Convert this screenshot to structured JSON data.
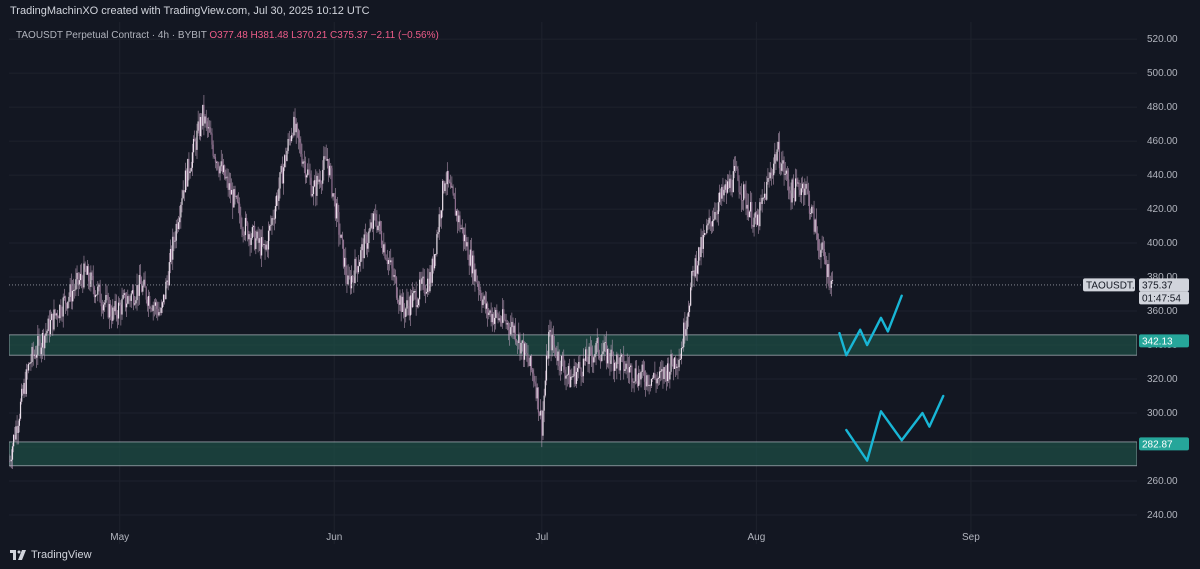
{
  "header": {
    "attribution": "TradingMachinXO created with TradingView.com, Jul 30, 2025 10:12 UTC"
  },
  "legend": {
    "symbol": "TAOUSDT Perpetual Contract · 4h · BYBIT",
    "ohlc": "O377.48  H381.48  L370.21  C375.37  −2.11 (−0.56%)"
  },
  "footer": {
    "brand": "TradingView"
  },
  "price_labels": {
    "symbol_tag": "TAOUSDT.P",
    "last_price": "375.37",
    "countdown": "01:47:54",
    "zone_upper": "342.13",
    "zone_lower": "282.87"
  },
  "colors": {
    "background": "#131722",
    "candle": "#c9a9c6",
    "zone_fill": "#1d4c44",
    "zone_border": "#2e8f7e",
    "zone_label": "#26a69a",
    "drawing": "#18b6d6"
  },
  "chart_data": {
    "type": "candlestick",
    "timeframe": "4h",
    "y_axis": {
      "ticks": [
        240,
        260,
        280,
        300,
        320,
        340,
        360,
        380,
        400,
        420,
        440,
        460,
        480,
        500,
        520
      ],
      "range": [
        230,
        523
      ]
    },
    "x_axis": {
      "range": [
        "2025-04-15",
        "2025-09-25"
      ],
      "ticks": [
        {
          "date": "2025-05-01",
          "label": "May"
        },
        {
          "date": "2025-06-01",
          "label": "Jun"
        },
        {
          "date": "2025-07-01",
          "label": "Jul"
        },
        {
          "date": "2025-08-01",
          "label": "Aug"
        },
        {
          "date": "2025-09-01",
          "label": "Sep"
        }
      ]
    },
    "price_path": [
      {
        "date": "2025-04-15",
        "close": 272
      },
      {
        "date": "2025-04-18",
        "close": 330
      },
      {
        "date": "2025-04-22",
        "close": 360
      },
      {
        "date": "2025-04-26",
        "close": 382
      },
      {
        "date": "2025-04-30",
        "close": 358
      },
      {
        "date": "2025-05-04",
        "close": 375
      },
      {
        "date": "2025-05-07",
        "close": 358
      },
      {
        "date": "2025-05-10",
        "close": 430
      },
      {
        "date": "2025-05-13",
        "close": 475
      },
      {
        "date": "2025-05-15",
        "close": 450
      },
      {
        "date": "2025-05-19",
        "close": 410
      },
      {
        "date": "2025-05-22",
        "close": 395
      },
      {
        "date": "2025-05-26",
        "close": 470
      },
      {
        "date": "2025-05-29",
        "close": 430
      },
      {
        "date": "2025-05-31",
        "close": 450
      },
      {
        "date": "2025-06-03",
        "close": 375
      },
      {
        "date": "2025-06-07",
        "close": 415
      },
      {
        "date": "2025-06-11",
        "close": 360
      },
      {
        "date": "2025-06-15",
        "close": 380
      },
      {
        "date": "2025-06-17",
        "close": 440
      },
      {
        "date": "2025-06-20",
        "close": 400
      },
      {
        "date": "2025-06-23",
        "close": 360
      },
      {
        "date": "2025-06-27",
        "close": 350
      },
      {
        "date": "2025-06-30",
        "close": 320
      },
      {
        "date": "2025-07-01",
        "close": 293
      },
      {
        "date": "2025-07-02",
        "close": 345
      },
      {
        "date": "2025-07-05",
        "close": 320
      },
      {
        "date": "2025-07-09",
        "close": 338
      },
      {
        "date": "2025-07-12",
        "close": 330
      },
      {
        "date": "2025-07-15",
        "close": 322
      },
      {
        "date": "2025-07-18",
        "close": 320
      },
      {
        "date": "2025-07-21",
        "close": 335
      },
      {
        "date": "2025-07-23",
        "close": 385
      },
      {
        "date": "2025-07-26",
        "close": 420
      },
      {
        "date": "2025-07-29",
        "close": 440
      },
      {
        "date": "2025-08-01",
        "close": 410
      },
      {
        "date": "2025-08-04",
        "close": 455
      },
      {
        "date": "2025-08-06",
        "close": 430
      },
      {
        "date": "2025-08-08",
        "close": 435
      },
      {
        "date": "2025-08-10",
        "close": 400
      },
      {
        "date": "2025-08-12",
        "close": 375
      }
    ],
    "last_close": 375.37,
    "zones": [
      {
        "label": "342.13",
        "top": 346,
        "bottom": 334,
        "start": "2025-04-15"
      },
      {
        "label": "282.87",
        "top": 283,
        "bottom": 269,
        "start": "2025-04-15"
      }
    ],
    "drawings": [
      {
        "type": "polyline",
        "points": [
          [
            "2025-08-13",
            347
          ],
          [
            "2025-08-14",
            334
          ],
          [
            "2025-08-16",
            349
          ],
          [
            "2025-08-17",
            340
          ],
          [
            "2025-08-19",
            356
          ],
          [
            "2025-08-20",
            348
          ],
          [
            "2025-08-22",
            369
          ]
        ]
      },
      {
        "type": "polyline",
        "points": [
          [
            "2025-08-14",
            290
          ],
          [
            "2025-08-17",
            272
          ],
          [
            "2025-08-19",
            301
          ],
          [
            "2025-08-22",
            284
          ],
          [
            "2025-08-25",
            300
          ],
          [
            "2025-08-26",
            292
          ],
          [
            "2025-08-28",
            310
          ]
        ]
      }
    ]
  }
}
